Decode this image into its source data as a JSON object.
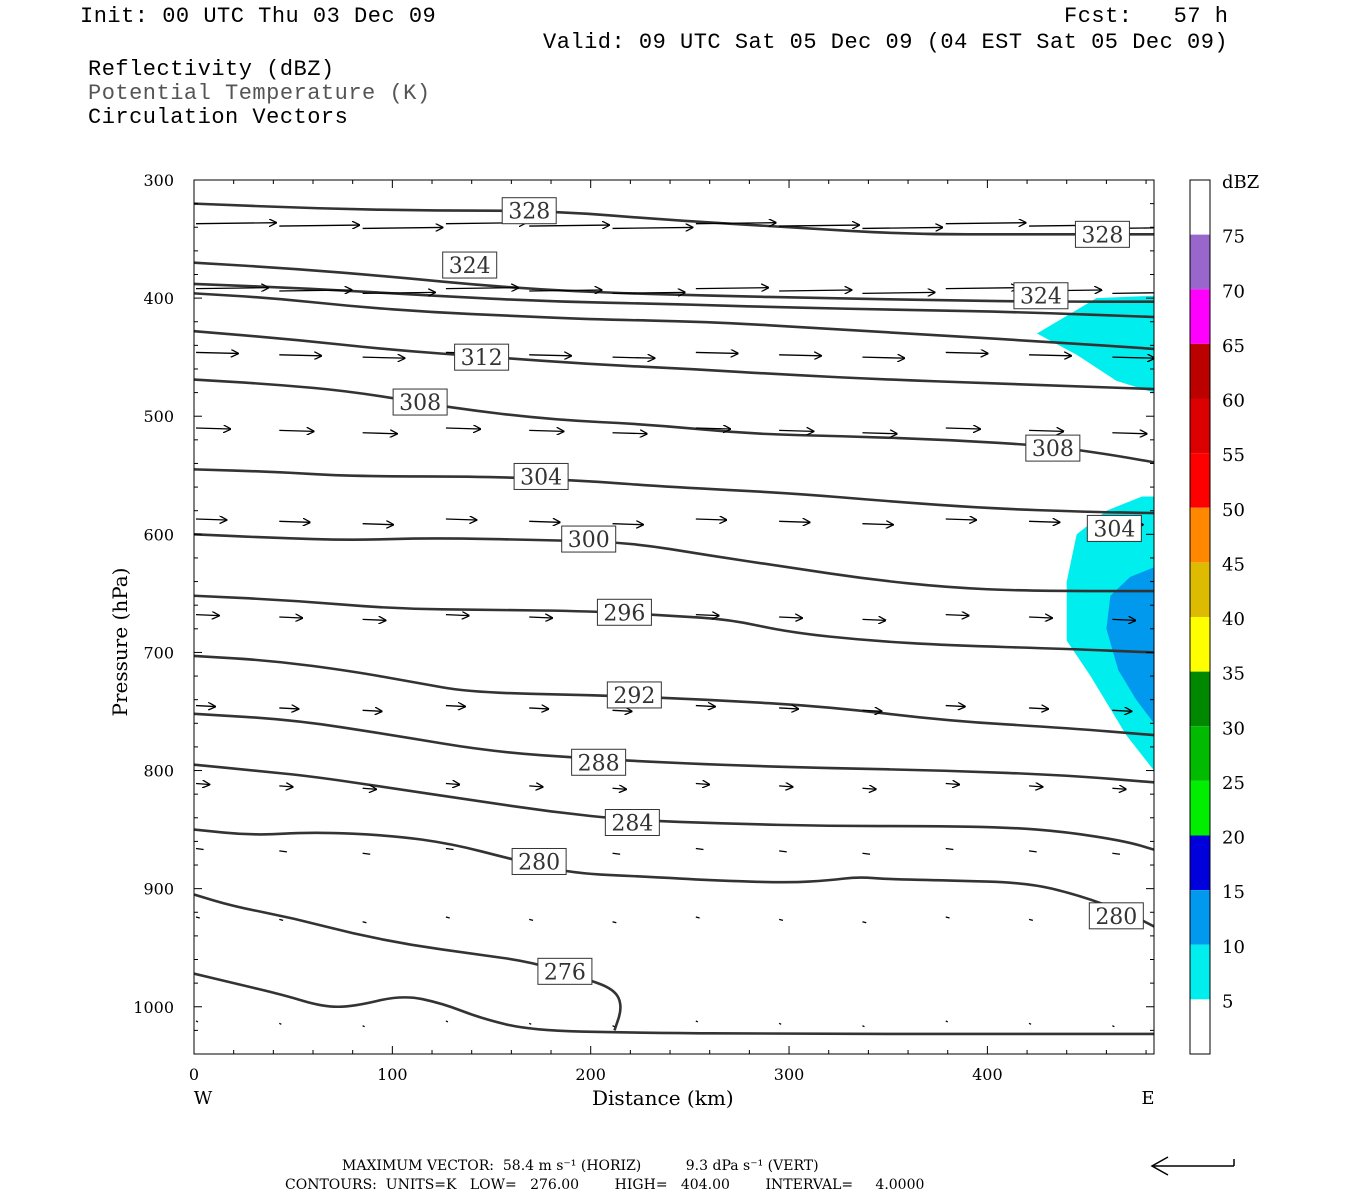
{
  "header": {
    "init": "Init: 00 UTC Thu 03 Dec 09",
    "fcst": "Fcst:   57 h",
    "valid": "Valid: 09 UTC Sat 05 Dec 09 (04 EST Sat 05 Dec 09)",
    "fields": [
      "Reflectivity (dBZ)",
      "Potential Temperature (K)",
      "Circulation Vectors"
    ]
  },
  "footer": {
    "line1": "MAXIMUM VECTOR:  58.4 m s⁻¹ (HORIZ)          9.3 dPa s⁻¹ (VERT)",
    "line2": "CONTOURS:  UNITS=K   LOW=   276.00        HIGH=   404.00        INTERVAL=     4.0000"
  },
  "chart_data": {
    "type": "contour",
    "xlabel": "Distance (km)",
    "ylabel": "Pressure (hPa)",
    "xlim": [
      0,
      484
    ],
    "ylim": [
      1040,
      300
    ],
    "x_ticks": [
      0,
      100,
      200,
      300,
      400
    ],
    "y_ticks": [
      300,
      400,
      500,
      600,
      700,
      800,
      900,
      1000
    ],
    "x_end_labels": [
      "W",
      "E"
    ],
    "colorbar": {
      "title": "dBZ",
      "labels": [
        "75",
        "70",
        "65",
        "60",
        "55",
        "50",
        "45",
        "40",
        "35",
        "30",
        "25",
        "20",
        "15",
        "10",
        "5"
      ],
      "colors": [
        "#ffffff",
        "#9966cc",
        "#ff00ff",
        "#bb0000",
        "#dd0000",
        "#ff0000",
        "#ff8800",
        "#ddbb00",
        "#ffff00",
        "#008800",
        "#00bb00",
        "#00ee00",
        "#0000dd",
        "#0099ee",
        "#00eeee",
        "#ffffff"
      ]
    },
    "reflectivity": [
      {
        "level": "5 dBZ",
        "color": "#00eeee",
        "points": [
          [
            425,
            430
          ],
          [
            440,
            415
          ],
          [
            455,
            400
          ],
          [
            484,
            398
          ],
          [
            484,
            480
          ],
          [
            465,
            470
          ],
          [
            445,
            448
          ]
        ]
      },
      {
        "level": "5 dBZ",
        "color": "#00eeee",
        "points": [
          [
            445,
            600
          ],
          [
            460,
            580
          ],
          [
            478,
            568
          ],
          [
            484,
            568
          ],
          [
            484,
            800
          ],
          [
            470,
            770
          ],
          [
            452,
            720
          ],
          [
            440,
            690
          ],
          [
            440,
            640
          ]
        ]
      },
      {
        "level": "10 dBZ",
        "color": "#0099ee",
        "points": [
          [
            460,
            680
          ],
          [
            462,
            652
          ],
          [
            472,
            636
          ],
          [
            484,
            628
          ],
          [
            484,
            760
          ],
          [
            475,
            740
          ],
          [
            466,
            715
          ]
        ]
      }
    ],
    "isentropes": [
      {
        "theta": 276,
        "label_x": 187,
        "points": [
          [
            0,
            972
          ],
          [
            20,
            980
          ],
          [
            45,
            990
          ],
          [
            65,
            1000
          ],
          [
            80,
            1000
          ],
          [
            105,
            990
          ],
          [
            125,
            997
          ],
          [
            145,
            1010
          ],
          [
            170,
            1020
          ],
          [
            220,
            1022
          ],
          [
            300,
            1023
          ],
          [
            400,
            1023
          ],
          [
            484,
            1023
          ]
        ]
      },
      {
        "theta": 276,
        "points": [
          [
            0,
            905
          ],
          [
            20,
            915
          ],
          [
            50,
            925
          ],
          [
            80,
            938
          ],
          [
            110,
            948
          ],
          [
            140,
            955
          ],
          [
            170,
            962
          ],
          [
            195,
            975
          ],
          [
            212,
            985
          ],
          [
            216,
            1000
          ],
          [
            212,
            1020
          ]
        ]
      },
      {
        "theta": 280,
        "label_x": 174,
        "points": [
          [
            0,
            850
          ],
          [
            30,
            855
          ],
          [
            60,
            852
          ],
          [
            100,
            855
          ],
          [
            130,
            862
          ],
          [
            160,
            875
          ],
          [
            190,
            887
          ],
          [
            230,
            890
          ],
          [
            260,
            893
          ],
          [
            300,
            895
          ],
          [
            320,
            893
          ],
          [
            335,
            890
          ],
          [
            350,
            892
          ],
          [
            380,
            893
          ],
          [
            420,
            895
          ],
          [
            445,
            905
          ],
          [
            470,
            920
          ],
          [
            484,
            932
          ]
        ]
      },
      {
        "theta": 284,
        "label_x": 221,
        "points": [
          [
            0,
            795
          ],
          [
            30,
            800
          ],
          [
            60,
            805
          ],
          [
            100,
            815
          ],
          [
            140,
            825
          ],
          [
            180,
            835
          ],
          [
            220,
            842
          ],
          [
            270,
            845
          ],
          [
            320,
            847
          ],
          [
            370,
            847
          ],
          [
            410,
            848
          ],
          [
            440,
            852
          ],
          [
            470,
            860
          ],
          [
            484,
            867
          ]
        ]
      },
      {
        "theta": 288,
        "label_x": 204,
        "points": [
          [
            0,
            752
          ],
          [
            50,
            757
          ],
          [
            100,
            770
          ],
          [
            150,
            784
          ],
          [
            200,
            790
          ],
          [
            260,
            795
          ],
          [
            320,
            798
          ],
          [
            380,
            800
          ],
          [
            440,
            804
          ],
          [
            484,
            810
          ]
        ]
      },
      {
        "theta": 292,
        "label_x": 222,
        "points": [
          [
            0,
            703
          ],
          [
            40,
            707
          ],
          [
            80,
            716
          ],
          [
            110,
            725
          ],
          [
            140,
            734
          ],
          [
            200,
            736
          ],
          [
            260,
            740
          ],
          [
            320,
            746
          ],
          [
            380,
            758
          ],
          [
            440,
            764
          ],
          [
            484,
            770
          ]
        ]
      },
      {
        "theta": 296,
        "label_x": 217,
        "points": [
          [
            0,
            652
          ],
          [
            50,
            656
          ],
          [
            100,
            663
          ],
          [
            150,
            664
          ],
          [
            200,
            665
          ],
          [
            240,
            669
          ],
          [
            270,
            672
          ],
          [
            300,
            683
          ],
          [
            340,
            690
          ],
          [
            380,
            694
          ],
          [
            440,
            697
          ],
          [
            484,
            700
          ]
        ]
      },
      {
        "theta": 300,
        "label_x": 199,
        "points": [
          [
            0,
            600
          ],
          [
            40,
            603
          ],
          [
            80,
            605
          ],
          [
            120,
            603
          ],
          [
            180,
            605
          ],
          [
            220,
            607
          ],
          [
            260,
            618
          ],
          [
            300,
            628
          ],
          [
            340,
            638
          ],
          [
            380,
            645
          ],
          [
            420,
            648
          ],
          [
            484,
            648
          ]
        ]
      },
      {
        "theta": 304,
        "label_x": 175,
        "points": [
          [
            0,
            545
          ],
          [
            40,
            547
          ],
          [
            80,
            551
          ],
          [
            150,
            551
          ],
          [
            200,
            555
          ],
          [
            240,
            560
          ],
          [
            300,
            565
          ],
          [
            350,
            572
          ],
          [
            400,
            578
          ],
          [
            450,
            581
          ],
          [
            484,
            582
          ]
        ]
      },
      {
        "theta": 304,
        "label_x": 464,
        "points": []
      },
      {
        "theta": 308,
        "label_x": 114,
        "points": [
          [
            0,
            469
          ],
          [
            40,
            473
          ],
          [
            80,
            479
          ],
          [
            130,
            493
          ],
          [
            180,
            503
          ],
          [
            230,
            507
          ],
          [
            280,
            515
          ],
          [
            330,
            517
          ],
          [
            380,
            520
          ],
          [
            430,
            525
          ],
          [
            460,
            532
          ],
          [
            484,
            539
          ]
        ]
      },
      {
        "theta": 308,
        "label_x": 433,
        "points": []
      },
      {
        "theta": 312,
        "label_x": 145,
        "points": [
          [
            0,
            428
          ],
          [
            50,
            435
          ],
          [
            100,
            444
          ],
          [
            150,
            450
          ],
          [
            200,
            456
          ],
          [
            250,
            460
          ],
          [
            300,
            465
          ],
          [
            350,
            469
          ],
          [
            400,
            472
          ],
          [
            450,
            475
          ],
          [
            484,
            477
          ]
        ]
      },
      {
        "theta": 316,
        "points": [
          [
            0,
            396
          ],
          [
            40,
            400
          ],
          [
            80,
            407
          ],
          [
            120,
            412
          ],
          [
            160,
            415
          ],
          [
            200,
            418
          ],
          [
            260,
            420
          ],
          [
            320,
            426
          ],
          [
            380,
            432
          ],
          [
            430,
            437
          ],
          [
            484,
            443
          ]
        ]
      },
      {
        "theta": 324,
        "label_x": 139,
        "points": [
          [
            0,
            370
          ],
          [
            50,
            375
          ],
          [
            100,
            382
          ],
          [
            150,
            390
          ],
          [
            200,
            395
          ],
          [
            260,
            398
          ],
          [
            320,
            400
          ],
          [
            380,
            402
          ],
          [
            430,
            403
          ],
          [
            484,
            403
          ]
        ]
      },
      {
        "theta": 324,
        "label_x": 427,
        "points": []
      },
      {
        "theta": 320,
        "points": [
          [
            0,
            388
          ],
          [
            60,
            392
          ],
          [
            120,
            398
          ],
          [
            180,
            403
          ],
          [
            240,
            405
          ],
          [
            300,
            408
          ],
          [
            360,
            410
          ],
          [
            420,
            412
          ],
          [
            484,
            416
          ]
        ]
      },
      {
        "theta": 328,
        "label_x": 169,
        "points": [
          [
            0,
            320
          ],
          [
            60,
            324
          ],
          [
            120,
            326
          ],
          [
            180,
            326
          ],
          [
            240,
            334
          ],
          [
            300,
            340
          ],
          [
            360,
            346
          ],
          [
            420,
            346
          ],
          [
            484,
            346
          ]
        ]
      },
      {
        "theta": 328,
        "label_x": 458,
        "points": []
      }
    ],
    "contour_labels": [
      {
        "text": "328",
        "x": 169,
        "p": 326
      },
      {
        "text": "328",
        "x": 458,
        "p": 346
      },
      {
        "text": "324",
        "x": 139,
        "p": 372
      },
      {
        "text": "324",
        "x": 427,
        "p": 398
      },
      {
        "text": "312",
        "x": 145,
        "p": 450
      },
      {
        "text": "308",
        "x": 114,
        "p": 488
      },
      {
        "text": "308",
        "x": 433,
        "p": 527
      },
      {
        "text": "304",
        "x": 175,
        "p": 551
      },
      {
        "text": "304",
        "x": 464,
        "p": 595
      },
      {
        "text": "300",
        "x": 199,
        "p": 604
      },
      {
        "text": "296",
        "x": 217,
        "p": 666
      },
      {
        "text": "292",
        "x": 222,
        "p": 736
      },
      {
        "text": "288",
        "x": 204,
        "p": 793
      },
      {
        "text": "284",
        "x": 221,
        "p": 844
      },
      {
        "text": "280",
        "x": 174,
        "p": 877
      },
      {
        "text": "280",
        "x": 465,
        "p": 923
      },
      {
        "text": "276",
        "x": 187,
        "p": 970
      }
    ],
    "vector_rows": [
      {
        "p": 337,
        "u": 42,
        "w": 0
      },
      {
        "p": 392,
        "u": 38,
        "w": 0
      },
      {
        "p": 446,
        "u": 22,
        "w": 0
      },
      {
        "p": 510,
        "u": 18,
        "w": 0
      },
      {
        "p": 587,
        "u": 16,
        "w": 0
      },
      {
        "p": 668,
        "u": 12,
        "w": 0
      },
      {
        "p": 745,
        "u": 10,
        "w": 0
      },
      {
        "p": 811,
        "u": 7,
        "w": 0
      },
      {
        "p": 866,
        "u": 4,
        "w": 0
      },
      {
        "p": 924,
        "u": 2,
        "w": 0
      },
      {
        "p": 1012,
        "u": 1,
        "w": 0
      }
    ],
    "max_vector": {
      "horiz": 58.4,
      "horiz_unit": "m s-1",
      "vert": 9.3,
      "vert_unit": "dPa s-1"
    },
    "contour_info": {
      "units": "K",
      "low": 276.0,
      "high": 404.0,
      "interval": 4.0
    }
  }
}
